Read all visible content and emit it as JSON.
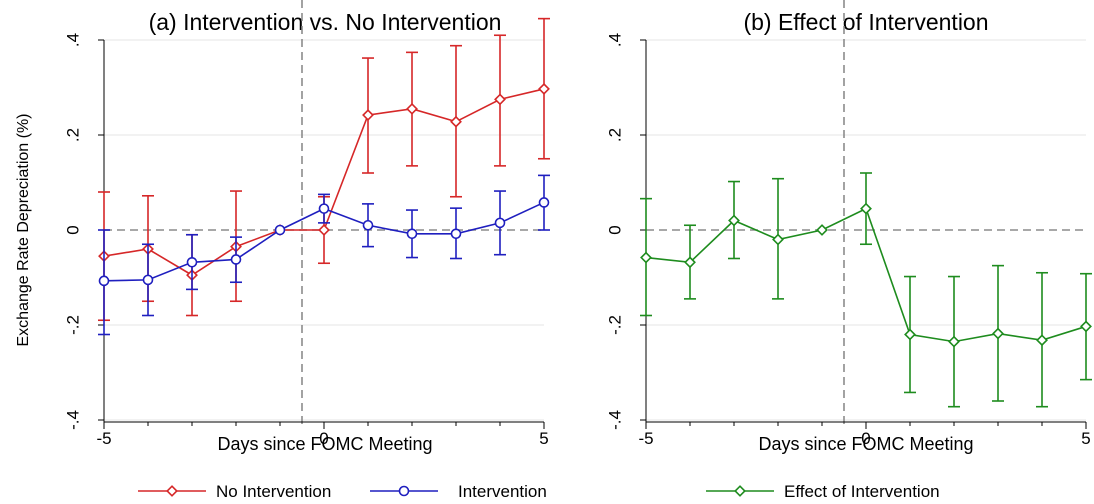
{
  "chart_data": [
    {
      "type": "line",
      "title": "(a) Intervention vs. No Intervention",
      "xlabel": "Days since FOMC Meeting",
      "ylabel": "Exchange Rate Depreciation (%)",
      "xlim": [
        -5,
        5
      ],
      "ylim": [
        -0.4,
        0.4
      ],
      "x_ticks": [
        -5,
        0,
        5
      ],
      "x_tick_labels": [
        "-5",
        "0",
        "5"
      ],
      "y_ticks": [
        -0.4,
        -0.2,
        0,
        0.2,
        0.4
      ],
      "y_tick_labels": [
        "-.4",
        "-.2",
        "0",
        ".2",
        ".4"
      ],
      "grid": true,
      "vline_x": -0.5,
      "hline_y": 0,
      "legend": "bottom",
      "x": [
        -5,
        -4,
        -3,
        -2,
        -1,
        0,
        1,
        2,
        3,
        4,
        5
      ],
      "series": [
        {
          "name": "No Intervention",
          "color": "#d62728",
          "marker": "diamond",
          "values": [
            -0.055,
            -0.04,
            -0.095,
            -0.035,
            0.0,
            0.0,
            0.242,
            0.255,
            0.228,
            0.275,
            0.297
          ],
          "ci_low": [
            -0.19,
            -0.15,
            -0.18,
            -0.15,
            0.0,
            -0.07,
            0.12,
            0.135,
            0.07,
            0.135,
            0.15
          ],
          "ci_high": [
            0.08,
            0.072,
            -0.01,
            0.082,
            0.0,
            0.07,
            0.362,
            0.374,
            0.388,
            0.41,
            0.445
          ]
        },
        {
          "name": "Intervention",
          "color": "#1f1fbf",
          "marker": "circle",
          "values": [
            -0.107,
            -0.105,
            -0.068,
            -0.062,
            0.0,
            0.045,
            0.01,
            -0.008,
            -0.008,
            0.015,
            0.058
          ],
          "ci_low": [
            -0.22,
            -0.18,
            -0.125,
            -0.11,
            0.0,
            0.015,
            -0.035,
            -0.058,
            -0.06,
            -0.052,
            0.0
          ],
          "ci_high": [
            0.0,
            -0.03,
            -0.01,
            -0.015,
            0.0,
            0.075,
            0.055,
            0.042,
            0.046,
            0.082,
            0.115
          ]
        }
      ]
    },
    {
      "type": "line",
      "title": "(b) Effect of Intervention",
      "xlabel": "Days since FOMC Meeting",
      "ylabel": "",
      "xlim": [
        -5,
        5
      ],
      "ylim": [
        -0.4,
        0.4
      ],
      "x_ticks": [
        -5,
        0,
        5
      ],
      "x_tick_labels": [
        "-5",
        "0",
        "5"
      ],
      "y_ticks": [
        -0.4,
        -0.2,
        0,
        0.2,
        0.4
      ],
      "y_tick_labels": [
        "-.4",
        "-.2",
        "0",
        ".2",
        ".4"
      ],
      "grid": true,
      "vline_x": -0.5,
      "hline_y": 0,
      "legend": "bottom",
      "x": [
        -5,
        -4,
        -3,
        -2,
        -1,
        0,
        1,
        2,
        3,
        4,
        5
      ],
      "series": [
        {
          "name": "Effect of Intervention",
          "color": "#1e8c1e",
          "marker": "diamond",
          "values": [
            -0.058,
            -0.068,
            0.02,
            -0.02,
            0.0,
            0.045,
            -0.22,
            -0.235,
            -0.218,
            -0.232,
            -0.203
          ],
          "ci_low": [
            -0.18,
            -0.145,
            -0.06,
            -0.145,
            0.0,
            -0.03,
            -0.342,
            -0.372,
            -0.36,
            -0.372,
            -0.315
          ],
          "ci_high": [
            0.066,
            0.01,
            0.102,
            0.108,
            0.0,
            0.12,
            -0.098,
            -0.098,
            -0.075,
            -0.09,
            -0.092
          ]
        }
      ]
    }
  ]
}
